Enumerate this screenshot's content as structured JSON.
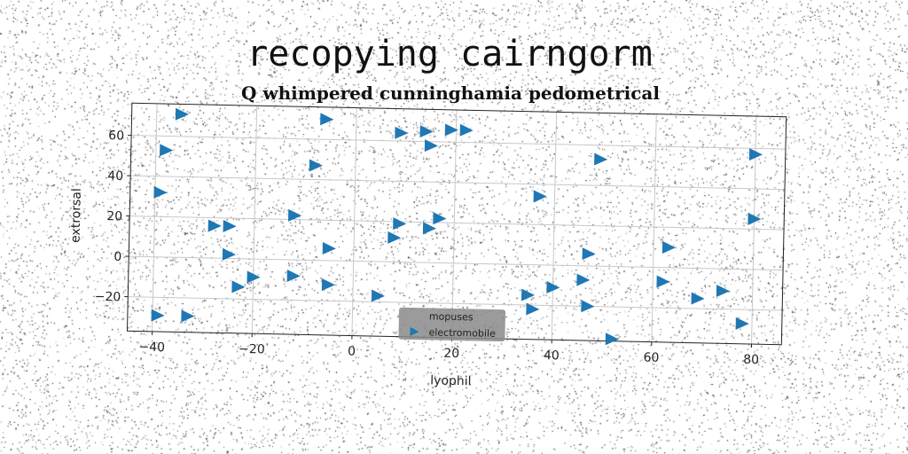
{
  "chart_data": {
    "type": "scatter",
    "title": "recopying cairngorm",
    "subtitle": "Q whimpered cunninghamia pedometrical",
    "xlabel": "lyophil",
    "ylabel": "extrorsal",
    "xlim": [
      -45,
      86
    ],
    "ylim": [
      -37,
      76
    ],
    "xticks": [
      -40,
      -20,
      0,
      20,
      40,
      60,
      80
    ],
    "yticks": [
      -20,
      0,
      20,
      40,
      60
    ],
    "xtick_labels": [
      "−40",
      "−20",
      "0",
      "20",
      "40",
      "60",
      "80"
    ],
    "ytick_labels": [
      "−20",
      "0",
      "20",
      "40",
      "60"
    ],
    "grid": true,
    "legend": {
      "placement": "lower-center",
      "entries": [
        {
          "label": "mopuses",
          "marker": "none",
          "color": "#555555"
        },
        {
          "label": "electromobile",
          "marker": "triangle-right",
          "color": "#1f77b4"
        }
      ]
    },
    "series": [
      {
        "name": "electromobile",
        "marker": "triangle-right",
        "color": "#1f77b4",
        "points": [
          [
            -35,
            71
          ],
          [
            -38,
            53
          ],
          [
            -39,
            32
          ],
          [
            -39,
            -29
          ],
          [
            -33,
            -29
          ],
          [
            -28,
            16
          ],
          [
            -25,
            16
          ],
          [
            -25,
            2
          ],
          [
            -23,
            -14
          ],
          [
            -20,
            -9
          ],
          [
            -12,
            22
          ],
          [
            -12,
            -8
          ],
          [
            -8,
            47
          ],
          [
            -6,
            70
          ],
          [
            -5,
            6
          ],
          [
            -5,
            -12
          ],
          [
            5,
            -17
          ],
          [
            8,
            12
          ],
          [
            9,
            19
          ],
          [
            9,
            64
          ],
          [
            14,
            65
          ],
          [
            15,
            58
          ],
          [
            15,
            17
          ],
          [
            17,
            22
          ],
          [
            19,
            66
          ],
          [
            22,
            66
          ],
          [
            35,
            -15
          ],
          [
            36,
            -22
          ],
          [
            37,
            34
          ],
          [
            40,
            -11
          ],
          [
            46,
            -7
          ],
          [
            47,
            6
          ],
          [
            47,
            -20
          ],
          [
            49,
            53
          ],
          [
            52,
            -36
          ],
          [
            62,
            -7
          ],
          [
            63,
            10
          ],
          [
            69,
            -15
          ],
          [
            74,
            -11
          ],
          [
            78,
            -27
          ],
          [
            80,
            57
          ],
          [
            80,
            25
          ]
        ]
      }
    ]
  }
}
